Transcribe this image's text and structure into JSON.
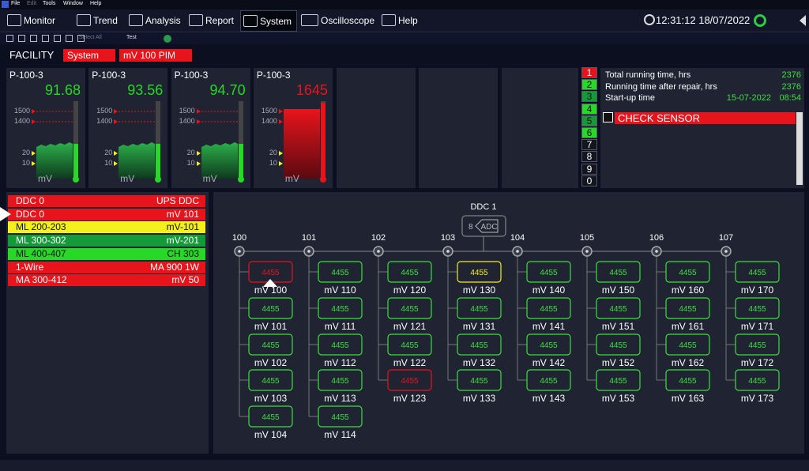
{
  "menu": [
    "File",
    "Edit",
    "Tools",
    "Window",
    "Help"
  ],
  "tabs": [
    "Monitor",
    "Trend",
    "Analysis",
    "Report",
    "System",
    "Oscilloscope",
    "Help"
  ],
  "clock": "12:31:12 18/07/2022",
  "toolbar2": [
    "Select All",
    "Test"
  ],
  "facility": {
    "label": "FACILITY",
    "filters": [
      "System",
      "mV 100 PIM"
    ]
  },
  "gauges": [
    {
      "name": "P-100-3",
      "value": "91.68",
      "color": "green",
      "scale": [
        "1500",
        "1400",
        "20",
        "10"
      ],
      "unit": "mV"
    },
    {
      "name": "P-100-3",
      "value": "93.56",
      "color": "green",
      "scale": [
        "1500",
        "1400",
        "20",
        "10"
      ],
      "unit": "mV"
    },
    {
      "name": "P-100-3",
      "value": "94.70",
      "color": "green",
      "scale": [
        "1500",
        "1400",
        "20",
        "10"
      ],
      "unit": "mV"
    },
    {
      "name": "P-100-3",
      "value": "1645",
      "color": "red",
      "scale": [
        "1500",
        "1400",
        "20",
        "10"
      ],
      "unit": "mV"
    }
  ],
  "channels": [
    {
      "label": "1",
      "color": "red"
    },
    {
      "label": "2",
      "color": "green"
    },
    {
      "label": "3",
      "color": "darkgreen"
    },
    {
      "label": "4",
      "color": "green"
    },
    {
      "label": "5",
      "color": "darkgreen"
    },
    {
      "label": "6",
      "color": "green"
    },
    {
      "label": "7",
      "color": "dark"
    },
    {
      "label": "8",
      "color": "dark"
    },
    {
      "label": "9",
      "color": "dark"
    },
    {
      "label": "0",
      "color": "dark"
    }
  ],
  "info": {
    "rows": [
      {
        "label": "Total running time, hrs",
        "value": "2376"
      },
      {
        "label": "Running time after repair, hrs",
        "value": "2376"
      },
      {
        "label": "Start-up time",
        "value": "15-07-2022",
        "time": "08:54"
      }
    ],
    "alert": "CHECK SENSOR"
  },
  "devices": [
    {
      "name": "DDC 0",
      "detail": "UPS DDC",
      "color": "red"
    },
    {
      "name": "DDC 0",
      "detail": "mV 101",
      "color": "red"
    },
    {
      "name": "ML 200-203",
      "detail": "mV-101",
      "color": "yellow"
    },
    {
      "name": "ML 300-302",
      "detail": "mV-201",
      "color": "darkgreen"
    },
    {
      "name": "ML 400-407",
      "detail": "CH 303",
      "color": "green"
    },
    {
      "name": "1-Wire",
      "detail": "MA 900 1W",
      "color": "red"
    },
    {
      "name": "MA 300-412",
      "detail": "mV 50",
      "color": "red"
    }
  ],
  "diagram": {
    "title": "DDC 1",
    "module": {
      "count": "8",
      "label": "ADC"
    },
    "buses": [
      {
        "label": "100",
        "sensors": [
          {
            "value": "4455",
            "label": "mV 100",
            "status": "alarm"
          },
          {
            "value": "4455",
            "label": "mV 101"
          },
          {
            "value": "4455",
            "label": "mV 102"
          },
          {
            "value": "4455",
            "label": "mV 103"
          },
          {
            "value": "4455",
            "label": "mV 104"
          }
        ]
      },
      {
        "label": "101",
        "sensors": [
          {
            "value": "4455",
            "label": "mV 110"
          },
          {
            "value": "4455",
            "label": "mV 111"
          },
          {
            "value": "4455",
            "label": "mV 112"
          },
          {
            "value": "4455",
            "label": "mV 113"
          },
          {
            "value": "4455",
            "label": "mV 114"
          }
        ]
      },
      {
        "label": "102",
        "sensors": [
          {
            "value": "4455",
            "label": "mV 120"
          },
          {
            "value": "4455",
            "label": "mV 121"
          },
          {
            "value": "4455",
            "label": "mV 122"
          },
          {
            "value": "4455",
            "label": "mV 123",
            "status": "alarm"
          }
        ]
      },
      {
        "label": "103",
        "sensors": [
          {
            "value": "4455",
            "label": "mV 130",
            "status": "warning"
          },
          {
            "value": "4455",
            "label": "mV 131"
          },
          {
            "value": "4455",
            "label": "mV 132"
          },
          {
            "value": "4455",
            "label": "mV 133"
          }
        ]
      },
      {
        "label": "104",
        "sensors": [
          {
            "value": "4455",
            "label": "mV 140"
          },
          {
            "value": "4455",
            "label": "mV 141"
          },
          {
            "value": "4455",
            "label": "mV 142"
          },
          {
            "value": "4455",
            "label": "mV 143"
          }
        ]
      },
      {
        "label": "105",
        "sensors": [
          {
            "value": "4455",
            "label": "mV 150"
          },
          {
            "value": "4455",
            "label": "mV 151"
          },
          {
            "value": "4455",
            "label": "mV 152"
          },
          {
            "value": "4455",
            "label": "mV 153"
          }
        ]
      },
      {
        "label": "106",
        "sensors": [
          {
            "value": "4455",
            "label": "mV 160"
          },
          {
            "value": "4455",
            "label": "mV 161"
          },
          {
            "value": "4455",
            "label": "mV 162"
          },
          {
            "value": "4455",
            "label": "mV 163"
          }
        ]
      },
      {
        "label": "107",
        "sensors": [
          {
            "value": "4455",
            "label": "mV 170"
          },
          {
            "value": "4455",
            "label": "mV 171"
          },
          {
            "value": "4455",
            "label": "mV 172"
          },
          {
            "value": "4455",
            "label": "mV 173"
          }
        ]
      }
    ]
  }
}
